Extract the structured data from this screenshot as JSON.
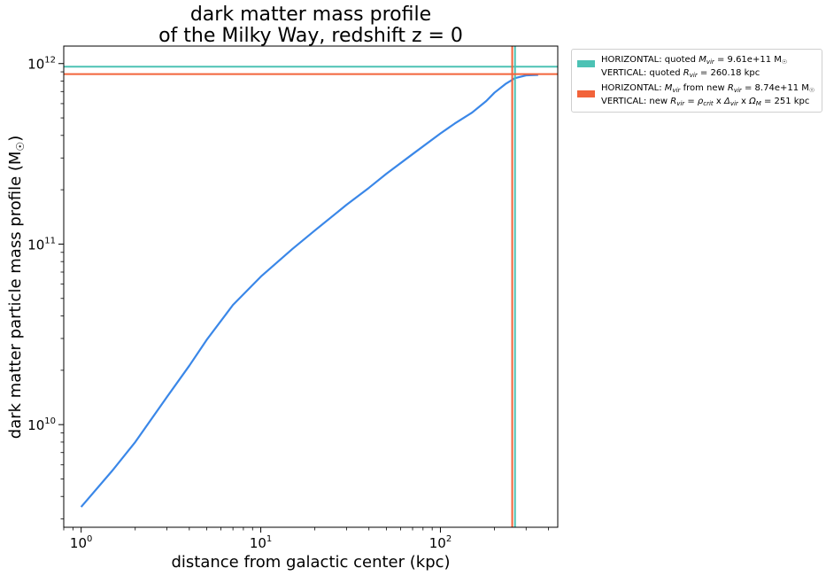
{
  "chart_data": {
    "type": "line",
    "title": [
      "dark matter mass profile",
      "of the Milky Way, redshift z = 0"
    ],
    "xlabel": "distance from galactic center (kpc)",
    "ylabel": "dark matter particle mass profile (M",
    "ylabel_sub": "☉",
    "ylabel_close": ")",
    "xscale": "log",
    "yscale": "log",
    "xlim": [
      0.8,
      450
    ],
    "ylim": [
      2700000000.0,
      1250000000000.0
    ],
    "x_ticks": [
      {
        "value": 1,
        "base": "10",
        "exp": "0"
      },
      {
        "value": 10,
        "base": "10",
        "exp": "1"
      },
      {
        "value": 100,
        "base": "10",
        "exp": "2"
      }
    ],
    "y_ticks": [
      {
        "value": 10000000000.0,
        "base": "10",
        "exp": "10"
      },
      {
        "value": 100000000000.0,
        "base": "10",
        "exp": "11"
      },
      {
        "value": 1000000000000.0,
        "base": "10",
        "exp": "12"
      }
    ],
    "grid": false,
    "legend_position": "outside-top-right",
    "series": [
      {
        "color": "#3a87e8",
        "x": [
          1.0,
          1.5,
          2.0,
          3.0,
          4.0,
          5.0,
          7.0,
          10.0,
          15.0,
          20.0,
          30.0,
          40.0,
          50.0,
          70.0,
          100.0,
          120.0,
          150.0,
          180.0,
          200.0,
          230.0,
          260.0,
          300.0,
          350.0
        ],
        "y": [
          3500000000.0,
          5600000000.0,
          8000000000.0,
          14200000000.0,
          21200000000.0,
          29500000000.0,
          46000000000.0,
          66000000000.0,
          94000000000.0,
          119000000000.0,
          165000000000.0,
          205000000000.0,
          245000000000.0,
          315000000000.0,
          410000000000.0,
          465000000000.0,
          535000000000.0,
          620000000000.0,
          690000000000.0,
          770000000000.0,
          830000000000.0,
          860000000000.0,
          865000000000.0
        ]
      }
    ],
    "reference_lines": [
      {
        "orientation": "horizontal",
        "value": 961000000000.0,
        "color": "#4cc2b4"
      },
      {
        "orientation": "vertical",
        "value": 260.18,
        "color": "#4cc2b4"
      },
      {
        "orientation": "horizontal",
        "value": 874000000000.0,
        "color": "#f2633a"
      },
      {
        "orientation": "vertical",
        "value": 251,
        "color": "#f2633a"
      }
    ],
    "legend": [
      {
        "color": "#4cc2b4",
        "line1": {
          "pre": "HORIZONTAL: quoted ",
          "sym": "M",
          "sub": "vir",
          "post": " = 9.61e+11 M",
          "sun": "☉"
        },
        "line2": {
          "pre": "VERTICAL: quoted ",
          "sym": "R",
          "sub": "vir",
          "post": " = 260.18 kpc"
        }
      },
      {
        "color": "#f2633a",
        "line1": {
          "pre": "HORIZONTAL: ",
          "sym": "M",
          "sub": "vir",
          "mid": " from new ",
          "sym2": "R",
          "sub2": "vir",
          "post": " = 8.74e+11 M",
          "sun": "☉"
        },
        "line2": {
          "pre": "VERTICAL: new ",
          "sym": "R",
          "sub": "vir",
          "mid": " = ",
          "sym2": "ρ",
          "sub2": "crit",
          "mid2": " x ",
          "sym3": "Δ",
          "sub3": "vir",
          "mid3": " x ",
          "sym4": "Ω",
          "sub4": "M",
          "post": " = 251 kpc"
        }
      }
    ]
  }
}
